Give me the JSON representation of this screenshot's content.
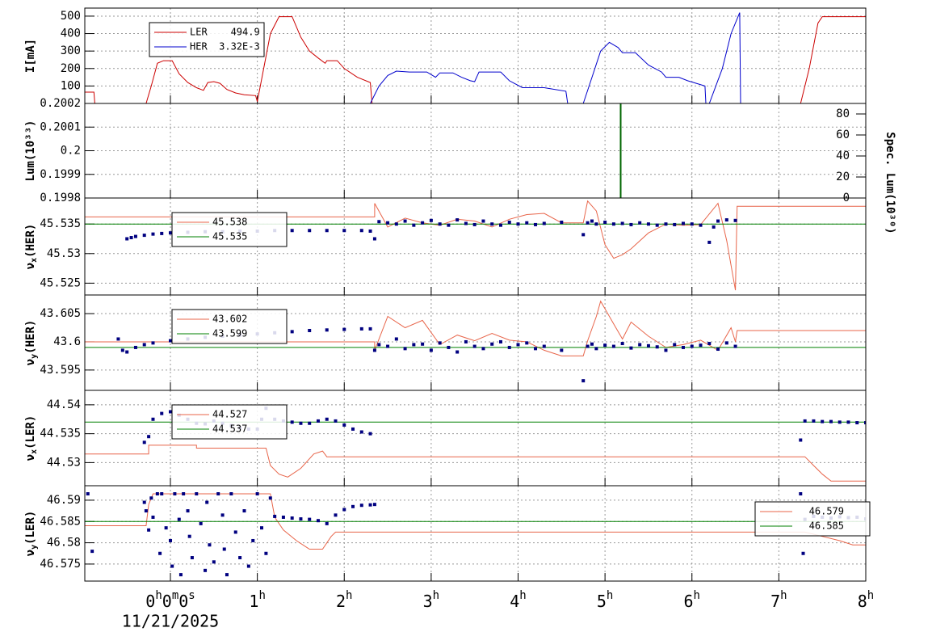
{
  "chart_data": [
    {
      "type": "line",
      "ylabel": "I[mA]",
      "ylim": [
        0,
        546
      ],
      "yticks": [
        100,
        200,
        300,
        400,
        500
      ],
      "legend": "upper left",
      "series": [
        {
          "name": "LER    494.9",
          "color": "#cc0000",
          "x": [
            -0.985,
            -0.88,
            -0.87,
            -0.28,
            -0.22,
            -0.15,
            -0.08,
            0.02,
            0.1,
            0.2,
            0.3,
            0.38,
            0.43,
            0.5,
            0.57,
            0.65,
            0.75,
            0.85,
            0.98,
            1.0,
            1.15,
            1.25,
            1.4,
            1.5,
            1.6,
            1.7,
            1.78,
            1.8,
            1.92,
            2.0,
            2.15,
            2.3,
            2.32,
            7.25,
            7.35,
            7.45,
            7.5,
            8.0
          ],
          "values": [
            65,
            65,
            0,
            0,
            100,
            230,
            245,
            245,
            170,
            120,
            90,
            75,
            120,
            125,
            115,
            80,
            60,
            50,
            45,
            10,
            400,
            497,
            497,
            380,
            300,
            260,
            230,
            245,
            245,
            200,
            150,
            120,
            0,
            0,
            200,
            460,
            497,
            497
          ]
        },
        {
          "name": "HER  3.32E-3",
          "color": "#0000cc",
          "x": [
            -0.985,
            2.3,
            2.4,
            2.5,
            2.6,
            2.75,
            2.95,
            3.05,
            3.1,
            3.25,
            3.35,
            3.45,
            3.5,
            3.55,
            3.8,
            3.9,
            4.05,
            4.3,
            4.55,
            4.57,
            4.75,
            4.85,
            4.95,
            5.05,
            5.15,
            5.2,
            5.35,
            5.5,
            5.65,
            5.7,
            5.85,
            5.95,
            6.15,
            6.16,
            6.2,
            6.35,
            6.45,
            6.55,
            6.56,
            8.0
          ],
          "values": [
            0,
            0,
            100,
            160,
            185,
            180,
            180,
            150,
            175,
            175,
            150,
            130,
            125,
            180,
            180,
            130,
            90,
            90,
            70,
            0,
            0,
            150,
            300,
            350,
            320,
            290,
            290,
            220,
            180,
            150,
            150,
            130,
            100,
            0,
            0,
            200,
            400,
            520,
            0,
            0
          ]
        }
      ]
    },
    {
      "type": "line",
      "ylabel": "Lum(10³³)",
      "y2label": "Spec. Lum(10³⁰)",
      "ylim": [
        0.1998,
        0.2002
      ],
      "yticks": [
        0.1998,
        0.1999,
        0.2,
        0.2001,
        0.2002
      ],
      "y2lim": [
        0,
        90
      ],
      "y2ticks": [
        0,
        20,
        40,
        60,
        80
      ],
      "series": [
        {
          "color": "#006600",
          "axis": "y2",
          "x": [
            5.18,
            5.18
          ],
          "values": [
            0,
            90
          ]
        }
      ]
    },
    {
      "type": "line",
      "ylabel": "νx(HER)",
      "ylim": [
        45.523,
        45.5394
      ],
      "yticks": [
        45.525,
        45.53,
        45.535
      ],
      "legend": "upper left",
      "series": [
        {
          "name": "45.538",
          "color": "#e8654a",
          "x": [
            -0.985,
            2.35,
            2.35,
            2.5,
            2.7,
            2.9,
            3.1,
            3.3,
            3.5,
            3.7,
            3.9,
            4.1,
            4.3,
            4.5,
            4.75,
            4.8,
            4.9,
            5.0,
            5.1,
            5.2,
            5.3,
            5.5,
            5.7,
            5.9,
            6.1,
            6.3,
            6.4,
            6.5,
            6.52,
            6.55,
            8.0
          ],
          "values": [
            45.5362,
            45.5362,
            45.5385,
            45.5345,
            45.536,
            45.5352,
            45.5348,
            45.5358,
            45.5355,
            45.5345,
            45.5358,
            45.5366,
            45.5368,
            45.5352,
            45.5352,
            45.5389,
            45.5372,
            45.5315,
            45.5292,
            45.5298,
            45.5308,
            45.5335,
            45.535,
            45.5348,
            45.5349,
            45.5385,
            45.5322,
            45.5238,
            45.538,
            45.538,
            45.538
          ]
        },
        {
          "name": "45.535",
          "color": "#008000",
          "x": [
            -0.985,
            8.0
          ],
          "values": [
            45.535,
            45.535
          ]
        },
        {
          "color": "#000080",
          "mode": "markers",
          "x": [
            -0.5,
            -0.45,
            -0.4,
            -0.3,
            -0.2,
            -0.1,
            0,
            0.2,
            0.4,
            0.6,
            0.8,
            1.0,
            1.2,
            1.4,
            1.6,
            1.8,
            2.0,
            2.2,
            2.3,
            2.35,
            2.4,
            2.5,
            2.6,
            2.7,
            2.8,
            2.9,
            3.0,
            3.1,
            3.2,
            3.3,
            3.4,
            3.5,
            3.6,
            3.7,
            3.8,
            3.9,
            4.0,
            4.1,
            4.2,
            4.3,
            4.5,
            4.75,
            4.8,
            4.85,
            4.9,
            5.0,
            5.1,
            5.2,
            5.3,
            5.4,
            5.5,
            5.6,
            5.7,
            5.8,
            5.9,
            6.0,
            6.1,
            6.2,
            6.25,
            6.3,
            6.4,
            6.5
          ],
          "values": [
            45.5325,
            45.5327,
            45.5329,
            45.5331,
            45.5333,
            45.5334,
            45.5335,
            45.5336,
            45.5337,
            45.5337,
            45.5338,
            45.5338,
            45.5339,
            45.5339,
            45.5339,
            45.5339,
            45.5339,
            45.5339,
            45.5338,
            45.5325,
            45.5354,
            45.5352,
            45.535,
            45.5355,
            45.5348,
            45.5352,
            45.5356,
            45.535,
            45.5348,
            45.5357,
            45.5351,
            45.5349,
            45.5355,
            45.535,
            45.5348,
            45.5353,
            45.535,
            45.5352,
            45.5349,
            45.5351,
            45.5353,
            45.5332,
            45.5352,
            45.5355,
            45.535,
            45.5353,
            45.535,
            45.5351,
            45.5349,
            45.5352,
            45.535,
            45.5348,
            45.535,
            45.5349,
            45.5351,
            45.535,
            45.5348,
            45.5319,
            45.5345,
            45.5355,
            45.5357,
            45.5356
          ]
        }
      ]
    },
    {
      "type": "line",
      "ylabel": "νy(HER)",
      "ylim": [
        43.5914,
        43.6083
      ],
      "yticks": [
        43.595,
        43.6,
        43.605
      ],
      "legend": "upper left",
      "series": [
        {
          "name": "43.602",
          "color": "#e8654a",
          "x": [
            -0.985,
            2.35,
            2.35,
            2.5,
            2.7,
            2.9,
            3.1,
            3.3,
            3.5,
            3.7,
            3.9,
            4.1,
            4.3,
            4.5,
            4.75,
            4.8,
            4.9,
            4.95,
            5.05,
            5.2,
            5.3,
            5.5,
            5.7,
            5.9,
            6.1,
            6.3,
            6.45,
            6.5,
            6.52,
            8.0
          ],
          "values": [
            43.6,
            43.6,
            43.5985,
            43.6045,
            43.6025,
            43.6038,
            43.5995,
            43.6012,
            43.6002,
            43.6015,
            43.6003,
            43.6,
            43.5985,
            43.5975,
            43.5975,
            43.6002,
            43.6045,
            43.6072,
            43.6045,
            43.6005,
            43.6035,
            43.601,
            43.599,
            43.5995,
            43.6003,
            43.5985,
            43.6025,
            43.6,
            43.602,
            43.602
          ]
        },
        {
          "name": "43.599",
          "color": "#008000",
          "x": [
            -0.985,
            8.0
          ],
          "values": [
            43.599,
            43.599
          ]
        },
        {
          "color": "#000080",
          "mode": "markers",
          "x": [
            -0.6,
            -0.55,
            -0.5,
            -0.4,
            -0.3,
            -0.2,
            0,
            0.2,
            0.4,
            0.6,
            0.8,
            1.0,
            1.2,
            1.4,
            1.6,
            1.8,
            2.0,
            2.2,
            2.3,
            2.35,
            2.4,
            2.5,
            2.6,
            2.7,
            2.8,
            2.9,
            3.0,
            3.1,
            3.2,
            3.3,
            3.4,
            3.5,
            3.6,
            3.7,
            3.8,
            3.9,
            4.0,
            4.1,
            4.2,
            4.3,
            4.5,
            4.75,
            4.8,
            4.85,
            4.9,
            5.0,
            5.1,
            5.2,
            5.3,
            5.4,
            5.5,
            5.6,
            5.7,
            5.8,
            5.9,
            6.0,
            6.1,
            6.2,
            6.3,
            6.4,
            6.5
          ],
          "values": [
            43.6005,
            43.5985,
            43.5982,
            43.599,
            43.5995,
            43.5998,
            43.6002,
            43.6005,
            43.6008,
            43.601,
            43.6012,
            43.6014,
            43.6016,
            43.6018,
            43.602,
            43.6021,
            43.6022,
            43.6023,
            43.6023,
            43.5985,
            43.5995,
            43.5992,
            43.6005,
            43.5988,
            43.5995,
            43.5996,
            43.5985,
            43.5998,
            43.599,
            43.5982,
            43.6,
            43.5992,
            43.5988,
            43.5996,
            43.6,
            43.599,
            43.5995,
            43.5998,
            43.5988,
            43.5992,
            43.5985,
            43.5931,
            43.5992,
            43.5996,
            43.5988,
            43.5994,
            43.5992,
            43.5997,
            43.5989,
            43.5995,
            43.5993,
            43.5991,
            43.5985,
            43.5995,
            43.599,
            43.5992,
            43.5994,
            43.5997,
            43.5987,
            43.5998,
            43.5992
          ]
        }
      ]
    },
    {
      "type": "line",
      "ylabel": "νx(LER)",
      "ylim": [
        44.526,
        44.5425
      ],
      "yticks": [
        44.53,
        44.535,
        44.54
      ],
      "legend": "upper left",
      "series": [
        {
          "name": "44.527",
          "color": "#e8654a",
          "x": [
            -0.985,
            -0.25,
            -0.25,
            0.3,
            0.3,
            1.1,
            1.15,
            1.25,
            1.35,
            1.5,
            1.65,
            1.75,
            1.8,
            7.3,
            7.4,
            7.5,
            7.6,
            8.0
          ],
          "values": [
            44.5315,
            44.5315,
            44.533,
            44.533,
            44.5325,
            44.5325,
            44.5295,
            44.528,
            44.5275,
            44.529,
            44.5315,
            44.532,
            44.531,
            44.531,
            44.5295,
            44.528,
            44.5268,
            44.5268
          ]
        },
        {
          "name": "44.537",
          "color": "#008000",
          "x": [
            -0.985,
            8.0
          ],
          "values": [
            44.537,
            44.537
          ]
        },
        {
          "color": "#000080",
          "mode": "markers",
          "x": [
            -0.3,
            -0.25,
            -0.2,
            -0.1,
            0.0,
            0.1,
            0.2,
            0.3,
            0.4,
            0.5,
            0.6,
            0.7,
            0.8,
            0.9,
            1.0,
            1.05,
            1.1,
            1.2,
            1.3,
            1.4,
            1.5,
            1.6,
            1.7,
            1.8,
            1.9,
            2.0,
            2.1,
            2.2,
            2.3,
            7.25,
            7.3,
            7.4,
            7.5,
            7.6,
            7.7,
            7.8,
            7.9,
            8.0
          ],
          "values": [
            44.5335,
            44.5345,
            44.5375,
            44.5385,
            44.5388,
            44.5382,
            44.5375,
            44.5368,
            44.5367,
            44.5372,
            44.5368,
            44.5364,
            44.536,
            44.5358,
            44.5358,
            44.5375,
            44.5394,
            44.5375,
            44.5372,
            44.537,
            44.5368,
            44.5368,
            44.5372,
            44.5375,
            44.5372,
            44.5365,
            44.5358,
            44.5353,
            44.535,
            44.5339,
            44.5372,
            44.5372,
            44.5371,
            44.5371,
            44.537,
            44.537,
            44.5369,
            44.5369
          ]
        }
      ]
    },
    {
      "type": "line",
      "ylabel": "νy(LER)",
      "xlabel": "11/21/2025",
      "ylim": [
        46.571,
        46.5934
      ],
      "yticks": [
        46.575,
        46.58,
        46.585,
        46.59
      ],
      "legend": "right",
      "xlim": [
        -0.985,
        8.0
      ],
      "xticks": [
        {
          "value": 0,
          "label": "0h0m0s"
        },
        {
          "value": 1,
          "label": "1h"
        },
        {
          "value": 2,
          "label": "2h"
        },
        {
          "value": 3,
          "label": "3h"
        },
        {
          "value": 4,
          "label": "4h"
        },
        {
          "value": 5,
          "label": "5h"
        },
        {
          "value": 6,
          "label": "6h"
        },
        {
          "value": 7,
          "label": "7h"
        },
        {
          "value": 8,
          "label": "8h"
        }
      ],
      "series": [
        {
          "name": "46.579",
          "color": "#e8654a",
          "x": [
            -0.985,
            -0.28,
            -0.25,
            -0.2,
            1.15,
            1.2,
            1.3,
            1.45,
            1.6,
            1.75,
            1.85,
            1.9,
            7.3,
            7.5,
            7.7,
            7.85,
            8.0
          ],
          "values": [
            46.584,
            46.584,
            46.589,
            46.5915,
            46.5915,
            46.586,
            46.583,
            46.5805,
            46.5785,
            46.5785,
            46.5815,
            46.5825,
            46.5825,
            46.5815,
            46.5805,
            46.5795,
            46.5795
          ]
        },
        {
          "name": "46.585",
          "color": "#008000",
          "x": [
            -0.985,
            8.0
          ],
          "values": [
            46.585,
            46.585
          ]
        },
        {
          "color": "#000080",
          "mode": "markers",
          "x": [
            -0.95,
            -0.9,
            -0.3,
            -0.28,
            -0.25,
            -0.22,
            -0.2,
            -0.15,
            -0.12,
            -0.1,
            -0.05,
            0.0,
            0.02,
            0.05,
            0.1,
            0.12,
            0.15,
            0.2,
            0.22,
            0.25,
            0.3,
            0.35,
            0.4,
            0.42,
            0.45,
            0.5,
            0.55,
            0.6,
            0.62,
            0.65,
            0.7,
            0.75,
            0.8,
            0.85,
            0.9,
            0.95,
            1.0,
            1.05,
            1.1,
            1.15,
            1.2,
            1.3,
            1.4,
            1.5,
            1.6,
            1.7,
            1.8,
            1.9,
            2.0,
            2.1,
            2.2,
            2.3,
            2.35,
            7.25,
            7.28,
            7.3,
            7.4,
            7.5,
            7.6,
            7.7,
            7.8,
            7.9,
            8.0
          ],
          "values": [
            46.5915,
            46.578,
            46.5895,
            46.5875,
            46.583,
            46.5905,
            46.586,
            46.5915,
            46.5775,
            46.5915,
            46.5835,
            46.5805,
            46.5745,
            46.5915,
            46.5855,
            46.5725,
            46.5915,
            46.5875,
            46.5815,
            46.5765,
            46.5915,
            46.5845,
            46.5735,
            46.5895,
            46.5795,
            46.5755,
            46.5915,
            46.5865,
            46.5785,
            46.5725,
            46.5915,
            46.5825,
            46.5765,
            46.5875,
            46.5745,
            46.5805,
            46.5915,
            46.5835,
            46.5775,
            46.5905,
            46.5862,
            46.586,
            46.5858,
            46.5856,
            46.5855,
            46.5852,
            46.5845,
            46.5865,
            46.5878,
            46.5885,
            46.5888,
            46.5889,
            46.589,
            46.5915,
            46.5775,
            46.5855,
            46.5862,
            46.586,
            46.5858,
            46.5861,
            46.5859,
            46.586,
            46.5856
          ]
        }
      ]
    }
  ]
}
